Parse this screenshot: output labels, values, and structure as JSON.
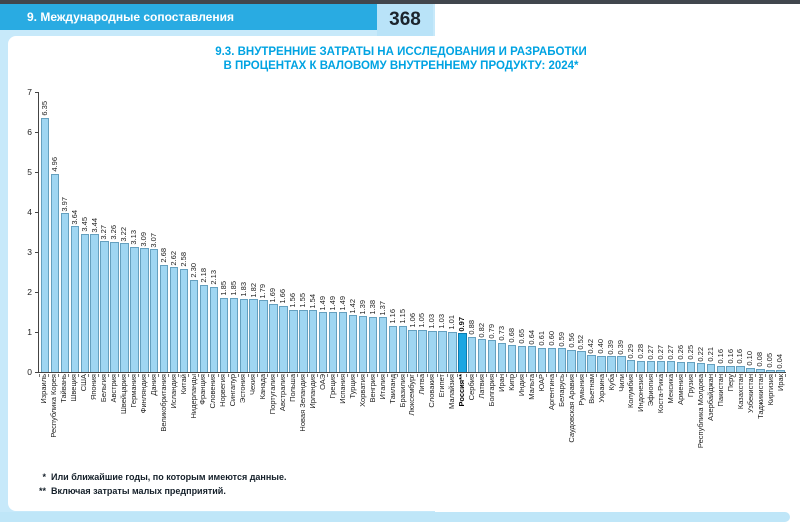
{
  "header": {
    "chapter": "9. Международные сопоставления",
    "page_number": "368"
  },
  "title": {
    "line1": "9.3. ВНУТРЕННИЕ ЗАТРАТЫ НА ИССЛЕДОВАНИЯ И РАЗРАБОТКИ",
    "line2": "В ПРОЦЕНТАХ К ВАЛОВОМУ ВНУТРЕННЕМУ ПРОДУКТУ: 2024*"
  },
  "footnotes": [
    {
      "marker": "*",
      "text": "Или ближайшие годы, по которым имеются данные."
    },
    {
      "marker": "**",
      "text": "Включая затраты малых предприятий."
    }
  ],
  "colors": {
    "band_blue": "#29abe2",
    "page_bg_blue": "#c7e9fa",
    "title_blue": "#00a3e2",
    "bar_fill": "#9fd6f2",
    "bar_border": "#65a0bf",
    "highlight_fill": "#1ba6e2",
    "highlight_border": "#0b7cb0",
    "top_line": "#41464d"
  },
  "chart_data": {
    "type": "bar",
    "title": "Внутренние затраты на исследования и разработки в процентах к валовому внутреннему продукту: 2024",
    "xlabel": "",
    "ylabel": "",
    "ylim": [
      0,
      7
    ],
    "yticks": [
      0,
      1,
      2,
      3,
      4,
      5,
      6,
      7
    ],
    "grid": false,
    "legend": "none",
    "highlight_category": "Россия**",
    "categories": [
      "Израиль",
      "Республика Корея",
      "Тайвань",
      "Швеция",
      "США",
      "Япония",
      "Бельгия",
      "Австрия",
      "Швейцария",
      "Германия",
      "Финляндия",
      "Дания",
      "Великобритания",
      "Исландия",
      "Китай",
      "Нидерланды",
      "Франция",
      "Словения",
      "Норвегия",
      "Сингапур",
      "Эстония",
      "Чехия",
      "Канада",
      "Португалия",
      "Австралия",
      "Польша",
      "Новая Зеландия",
      "Ирландия",
      "ОАЭ",
      "Греция",
      "Испания",
      "Турция",
      "Хорватия",
      "Венгрия",
      "Италия",
      "Таиланд",
      "Бразилия",
      "Люксембург",
      "Литва",
      "Словакия",
      "Египет",
      "Малайзия",
      "Россия**",
      "Сербия",
      "Латвия",
      "Болгария",
      "Иран",
      "Кипр",
      "Индия",
      "Мальта",
      "ЮАР",
      "Аргентина",
      "Беларусь",
      "Саудовская Аравия",
      "Румыния",
      "Вьетнам",
      "Украина",
      "Куба",
      "Чили",
      "Колумбия",
      "Индонезия",
      "Эфиопия",
      "Коста-Рика",
      "Мексика",
      "Армения",
      "Грузия",
      "Республика Молдова",
      "Азербайджан",
      "Пакистан",
      "Перу",
      "Казахстан",
      "Узбекистан",
      "Таджикистан",
      "Киргизия",
      "Ирак"
    ],
    "values": [
      6.35,
      4.96,
      3.97,
      3.64,
      3.45,
      3.44,
      3.27,
      3.26,
      3.22,
      3.13,
      3.09,
      3.07,
      2.68,
      2.62,
      2.58,
      2.3,
      2.18,
      2.13,
      1.85,
      1.85,
      1.83,
      1.82,
      1.79,
      1.69,
      1.66,
      1.56,
      1.55,
      1.54,
      1.49,
      1.49,
      1.49,
      1.42,
      1.39,
      1.38,
      1.37,
      1.16,
      1.15,
      1.06,
      1.05,
      1.03,
      1.03,
      1.01,
      0.97,
      0.88,
      0.82,
      0.79,
      0.73,
      0.68,
      0.65,
      0.64,
      0.61,
      0.6,
      0.59,
      0.56,
      0.52,
      0.42,
      0.4,
      0.39,
      0.39,
      0.29,
      0.28,
      0.27,
      0.27,
      0.27,
      0.26,
      0.25,
      0.22,
      0.21,
      0.16,
      0.16,
      0.16,
      0.1,
      0.08,
      0.05,
      0.04
    ]
  }
}
